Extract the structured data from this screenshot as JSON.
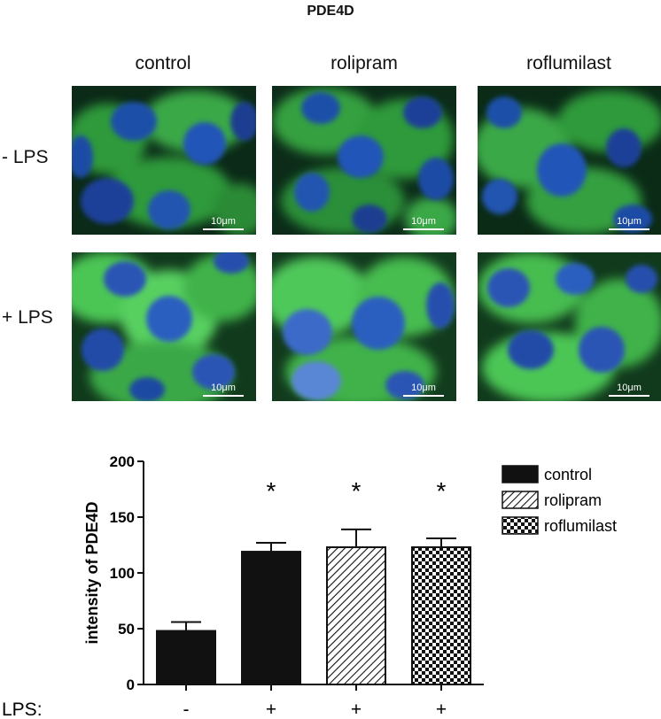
{
  "figure": {
    "title": "PDE4D",
    "columns": [
      "control",
      "rolipram",
      "roflumilast"
    ],
    "rows": [
      "- LPS",
      "+ LPS"
    ],
    "scale_label": "10μm"
  },
  "chart_data": {
    "type": "bar",
    "categories": [
      "-",
      "+",
      "+",
      "+"
    ],
    "xlabel": "LPS:",
    "ylabel": "intensity of PDE4D",
    "ylim": [
      0,
      200
    ],
    "yticks": [
      0,
      50,
      100,
      150,
      200
    ],
    "values": [
      48,
      119,
      123,
      123
    ],
    "errors": [
      8,
      8,
      16,
      8
    ],
    "significance": [
      "",
      "*",
      "*",
      "*"
    ],
    "bar_series": [
      "control",
      "control",
      "rolipram",
      "roflumilast"
    ],
    "legend": [
      {
        "name": "control",
        "pattern": "solid"
      },
      {
        "name": "rolipram",
        "pattern": "hatch"
      },
      {
        "name": "roflumilast",
        "pattern": "checker"
      }
    ],
    "legend_position": "right",
    "grid": false
  }
}
